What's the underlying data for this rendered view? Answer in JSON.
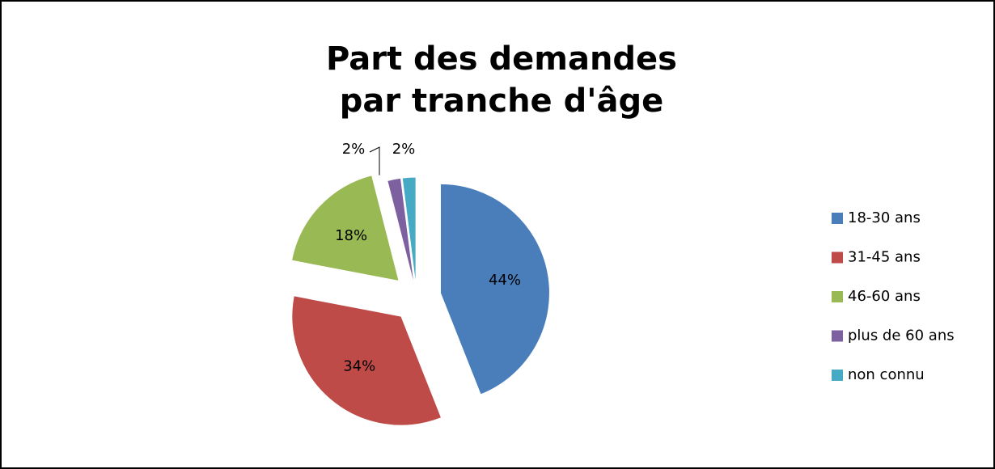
{
  "chart_data": {
    "type": "pie",
    "title": [
      "Part des demandes",
      "par tranche d'âge"
    ],
    "categories": [
      "18-30 ans",
      "31-45 ans",
      "46-60 ans",
      "plus de 60 ans",
      "non connu"
    ],
    "values": [
      44,
      34,
      18,
      2,
      2
    ],
    "value_labels": [
      "44%",
      "34%",
      "18%",
      "2%",
      "2%"
    ],
    "colors": [
      "#4a7ebb",
      "#be4b48",
      "#98b954",
      "#7d60a0",
      "#46aac5"
    ],
    "legend": "right"
  }
}
